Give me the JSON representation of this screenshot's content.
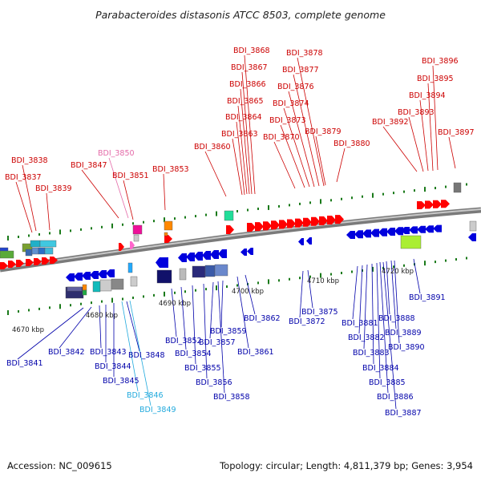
{
  "title": "Parabacteroides distasonis ATCC 8503, complete genome",
  "footer": {
    "accession": "Accession: NC_009615",
    "topology": "Topology: circular; Length: 4,811,379 bp; Genes: 3,954"
  },
  "colors": {
    "forward_label": "#cc0000",
    "reverse_label": "#0000aa",
    "pseudo_forward_label": "#e46aa8",
    "pseudo_reverse_label": "#22aadd",
    "backbone": "#8c8c8c",
    "forward_gene": "#ff0000",
    "reverse_gene": "#0000dd",
    "tick": "#1a7a1a"
  },
  "scale_labels": [
    "4670 kbp",
    "4680 kbp",
    "4690 kbp",
    "4700 kbp",
    "4710 kbp",
    "4720 kbp"
  ],
  "forward_labels": [
    "BDI_3838",
    "BDI_3837",
    "BDI_3839",
    "BDI_3850",
    "BDI_3847",
    "BDI_3851",
    "BDI_3853",
    "BDI_3860",
    "BDI_3868",
    "BDI_3867",
    "BDI_3866",
    "BDI_3865",
    "BDI_3864",
    "BDI_3863",
    "BDI_3878",
    "BDI_3877",
    "BDI_3876",
    "BDI_3874",
    "BDI_3873",
    "BDI_3870",
    "BDI_3879",
    "BDI_3880",
    "BDI_3896",
    "BDI_3895",
    "BDI_3894",
    "BDI_3893",
    "BDI_3892",
    "BDI_3897"
  ],
  "reverse_labels": [
    "BDI_3841",
    "BDI_3842",
    "BDI_3843",
    "BDI_3844",
    "BDI_3845",
    "BDI_3846",
    "BDI_3848",
    "BDI_3849",
    "BDI_3852",
    "BDI_3854",
    "BDI_3855",
    "BDI_3856",
    "BDI_3857",
    "BDI_3858",
    "BDI_3859",
    "BDI_3861",
    "BDI_3862",
    "BDI_3872",
    "BDI_3875",
    "BDI_3881",
    "BDI_3882",
    "BDI_3883",
    "BDI_3884",
    "BDI_3885",
    "BDI_3886",
    "BDI_3887",
    "BDI_3888",
    "BDI_3889",
    "BDI_3890",
    "BDI_3891"
  ]
}
